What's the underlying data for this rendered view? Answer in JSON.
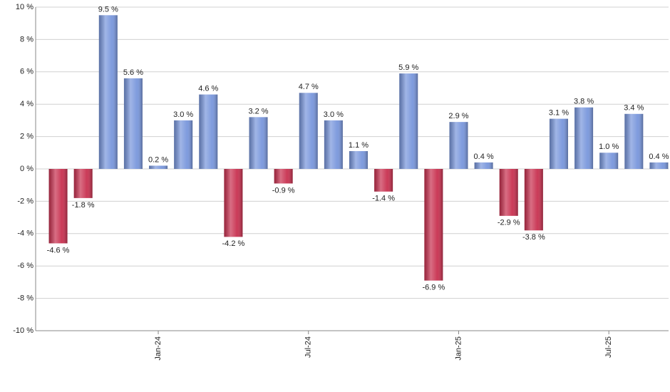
{
  "chart_data": {
    "type": "bar",
    "categories": [
      null,
      null,
      null,
      null,
      "Jan-24",
      null,
      null,
      null,
      null,
      null,
      "Jul-24",
      null,
      null,
      null,
      null,
      null,
      "Jan-25",
      null,
      null,
      null,
      null,
      null,
      "Jul-25",
      null,
      null
    ],
    "values": [
      -4.6,
      -1.8,
      9.5,
      5.6,
      0.2,
      3.0,
      4.6,
      -4.2,
      3.2,
      -0.9,
      4.7,
      3.0,
      1.1,
      -1.4,
      5.9,
      -6.9,
      2.9,
      0.4,
      -2.9,
      -3.8,
      3.1,
      3.8,
      1.0,
      3.4,
      0.4
    ],
    "value_labels": [
      "-4.6 %",
      "-1.8 %",
      "9.5 %",
      "5.6 %",
      "0.2 %",
      "3.0 %",
      "4.6 %",
      "-4.2 %",
      "3.2 %",
      "-0.9 %",
      "4.7 %",
      "3.0 %",
      "1.1 %",
      "-1.4 %",
      "5.9 %",
      "-6.9 %",
      "2.9 %",
      "0.4 %",
      "-2.9 %",
      "-3.8 %",
      "3.1 %",
      "3.8 %",
      "1.0 %",
      "3.4 %",
      "0.4 %"
    ],
    "positive_color": "#7896dc",
    "negative_color": "#c8304f",
    "ylim": [
      -10,
      10
    ],
    "yticks": [
      {
        "value": -10,
        "label": "-10 %"
      },
      {
        "value": -8,
        "label": "-8 %"
      },
      {
        "value": -6,
        "label": "-6 %"
      },
      {
        "value": -4,
        "label": "-4 %"
      },
      {
        "value": -2,
        "label": "-2 %"
      },
      {
        "value": 0,
        "label": "0 %"
      },
      {
        "value": 2,
        "label": "2 %"
      },
      {
        "value": 4,
        "label": "4 %"
      },
      {
        "value": 6,
        "label": "6 %"
      },
      {
        "value": 8,
        "label": "8 %"
      },
      {
        "value": 10,
        "label": "10 %"
      }
    ],
    "grid": true
  }
}
